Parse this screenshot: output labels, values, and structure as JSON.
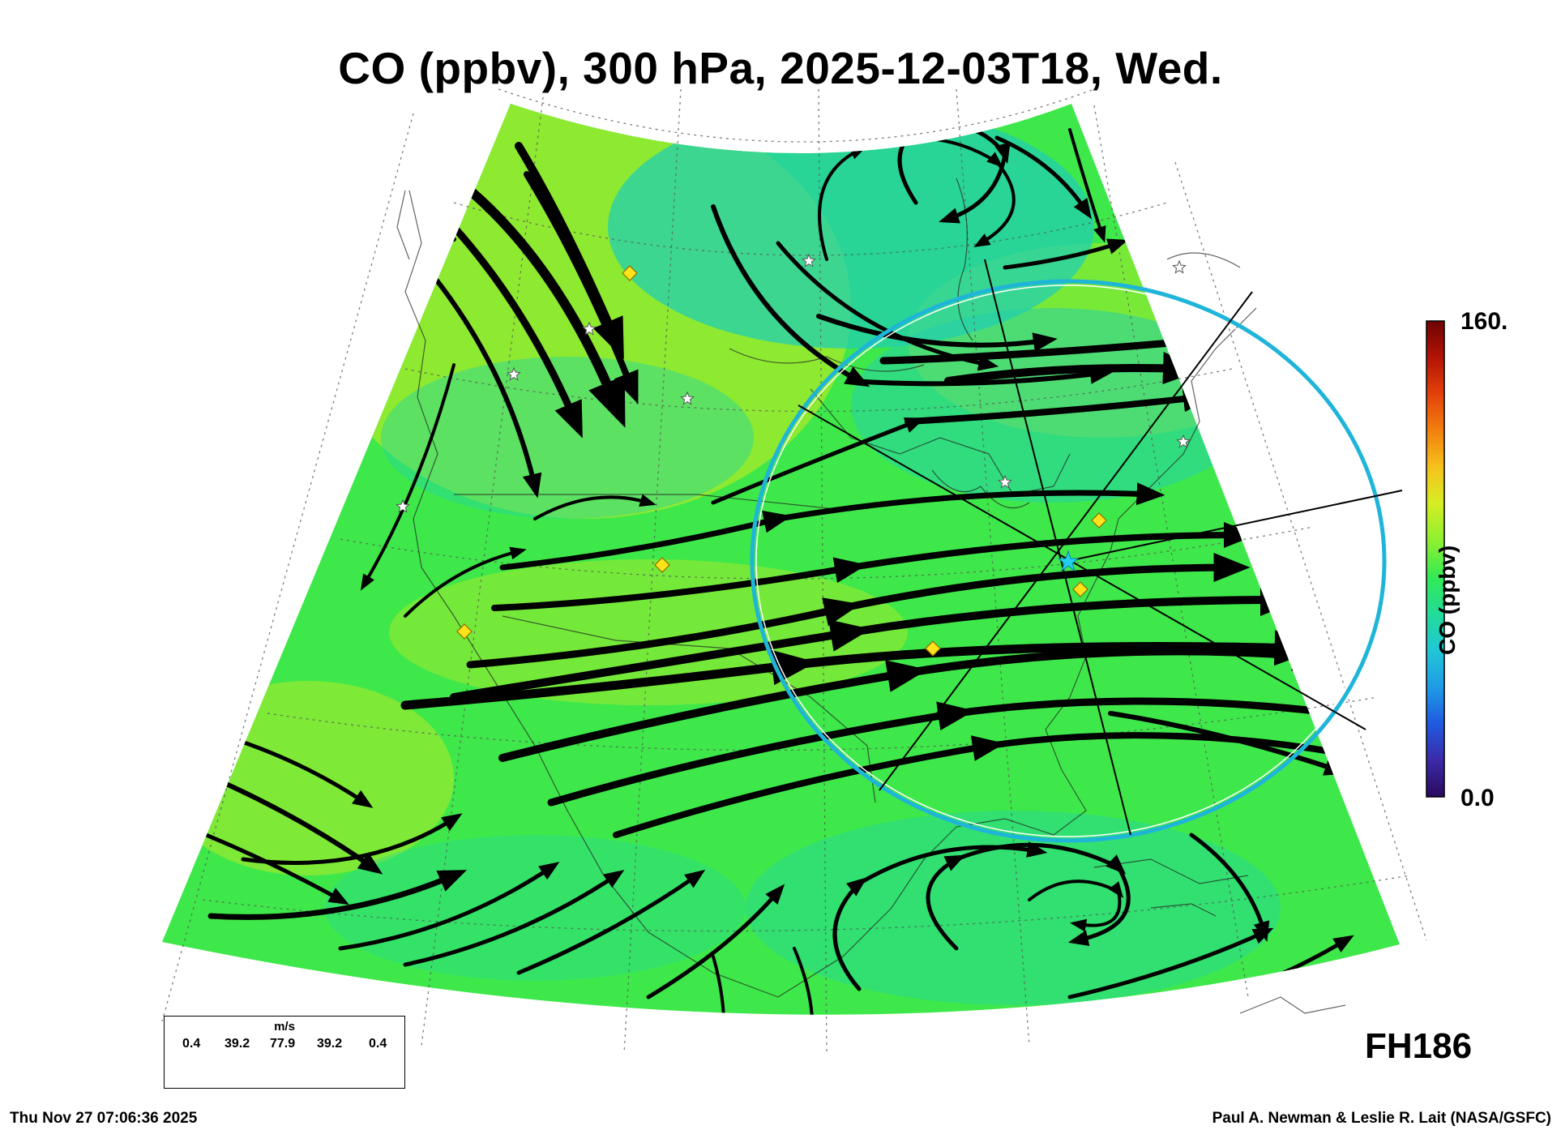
{
  "title": "CO (ppbv), 300 hPa, 2025-12-03T18, Wed.",
  "colorbar": {
    "max_label": "160.",
    "min_label": "0.0",
    "title": "CO (ppbv)",
    "range": [
      0,
      160
    ],
    "colors": [
      "#2a0a5e",
      "#3b2aa8",
      "#1f5ae0",
      "#1f9be6",
      "#21c7d6",
      "#22dc98",
      "#33ea55",
      "#8ef030",
      "#d5ee24",
      "#f6c21c",
      "#f2800f",
      "#e3420a",
      "#b31306",
      "#6e0303"
    ]
  },
  "forecast_hour": "FH186",
  "wind_legend": {
    "unit": "m/s",
    "ticks": [
      "0.4",
      "39.2",
      "77.9",
      "39.2",
      "0.4"
    ]
  },
  "footer": {
    "timestamp": "Thu Nov 27 07:06:36 2025",
    "credit": "Paul A. Newman & Leslie R. Lait (NASA/GSFC)"
  },
  "colors": {
    "field_main": "#3fe84a",
    "field_high": "#a9ea2a",
    "field_low": "#22cfb0",
    "streamline": "#000000",
    "range_ring": "#1fb5d8",
    "marker": "#ffe31a"
  }
}
